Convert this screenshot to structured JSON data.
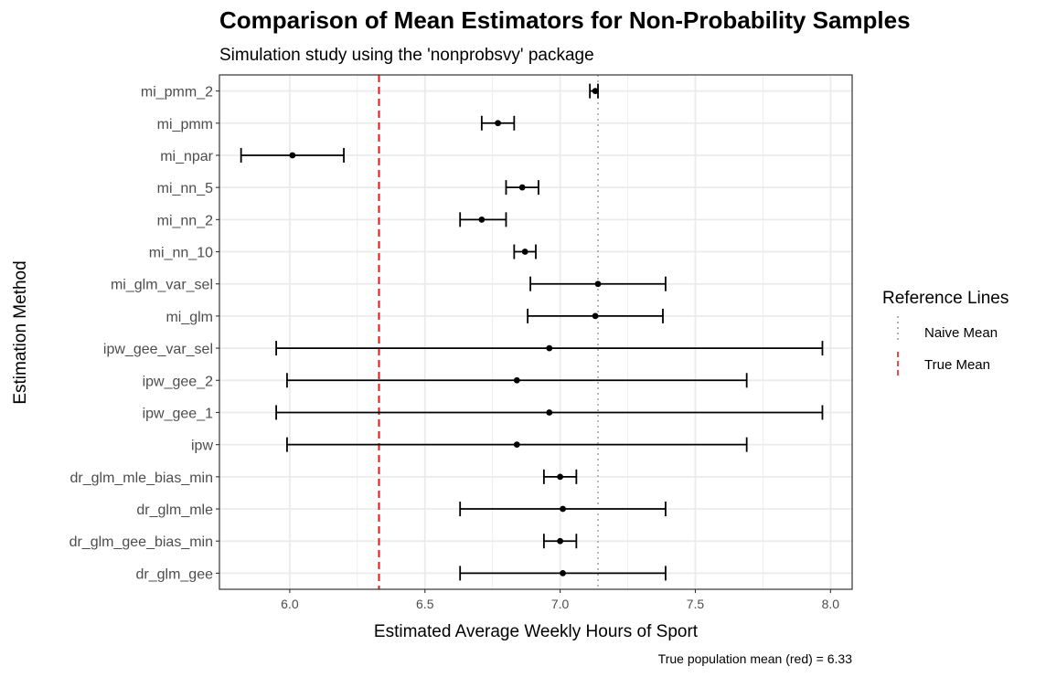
{
  "chart_data": {
    "type": "errorbar",
    "title": "Comparison of Mean Estimators for Non-Probability Samples",
    "subtitle": "Simulation study using the 'nonprobsvy' package",
    "xlabel": "Estimated Average Weekly Hours of Sport",
    "ylabel": "Estimation Method",
    "caption": "True population mean (red) = 6.33",
    "xlim": [
      5.74,
      8.08
    ],
    "xticks": [
      "6.0",
      "6.5",
      "7.0",
      "7.5",
      "8.0"
    ],
    "grid": true,
    "legend": {
      "title": "Reference Lines",
      "position": "right",
      "items": [
        {
          "label": "Naive Mean",
          "color": "#999999",
          "style": "dotted"
        },
        {
          "label": "True Mean",
          "color": "#e41a1c",
          "style": "dashed"
        }
      ]
    },
    "reference_lines": {
      "true_mean": 6.33,
      "naive_mean": 7.14
    },
    "categories": [
      "mi_pmm_2",
      "mi_pmm",
      "mi_npar",
      "mi_nn_5",
      "mi_nn_2",
      "mi_nn_10",
      "mi_glm_var_sel",
      "mi_glm",
      "ipw_gee_var_sel",
      "ipw_gee_2",
      "ipw_gee_1",
      "ipw",
      "dr_glm_mle_bias_min",
      "dr_glm_mle",
      "dr_glm_gee_bias_min",
      "dr_glm_gee"
    ],
    "estimates": [
      7.13,
      6.77,
      6.01,
      6.86,
      6.71,
      6.87,
      7.14,
      7.13,
      6.96,
      6.84,
      6.96,
      6.84,
      7.0,
      7.01,
      7.0,
      7.01
    ],
    "lower": [
      7.11,
      6.71,
      5.82,
      6.8,
      6.63,
      6.83,
      6.89,
      6.88,
      5.95,
      5.99,
      5.95,
      5.99,
      6.94,
      6.63,
      6.94,
      6.63
    ],
    "upper": [
      7.14,
      6.83,
      6.2,
      6.92,
      6.8,
      6.91,
      7.39,
      7.38,
      7.97,
      7.69,
      7.97,
      7.69,
      7.06,
      7.39,
      7.06,
      7.39
    ]
  },
  "colors": {
    "grid": "#ebebeb",
    "panel_border": "#333333",
    "point": "#000000",
    "true_mean": "#e41a1c",
    "naive_mean": "#999999"
  }
}
